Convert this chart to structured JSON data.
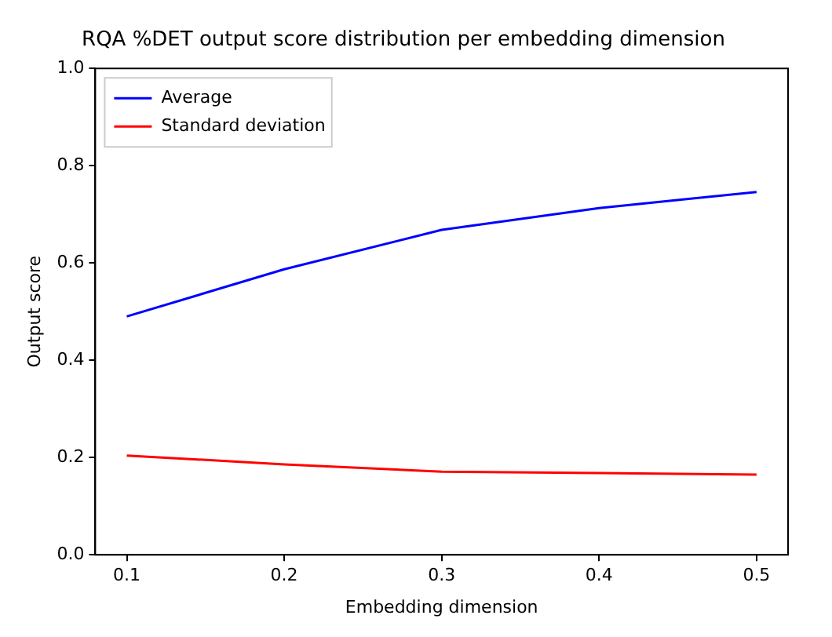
{
  "chart_data": {
    "type": "line",
    "title": "RQA %DET output score distribution per embedding dimension",
    "xlabel": "Embedding dimension",
    "ylabel": "Output score",
    "x": [
      0.1,
      0.2,
      0.3,
      0.4,
      0.5
    ],
    "series": [
      {
        "name": "Average",
        "color": "#0000ff",
        "values": [
          0.49,
          0.587,
          0.668,
          0.713,
          0.746
        ]
      },
      {
        "name": "Standard deviation",
        "color": "#ff0000",
        "values": [
          0.204,
          0.186,
          0.171,
          0.168,
          0.165
        ]
      }
    ],
    "xlim": [
      0.08,
      0.52
    ],
    "xticks": [
      0.1,
      0.2,
      0.3,
      0.4,
      0.5
    ],
    "ylim": [
      0,
      1
    ],
    "yticks": [
      {
        "value": 0,
        "label": "0.0"
      },
      {
        "value": 0.2,
        "label": "0.2"
      },
      {
        "value": 0.4,
        "label": "0.4"
      },
      {
        "value": 0.6,
        "label": "0.6"
      },
      {
        "value": 0.8,
        "label": "0.8"
      },
      {
        "value": 1,
        "label": "1.0"
      }
    ],
    "grid": false,
    "legend": "top left",
    "marker": "none",
    "line_style": "solid"
  }
}
